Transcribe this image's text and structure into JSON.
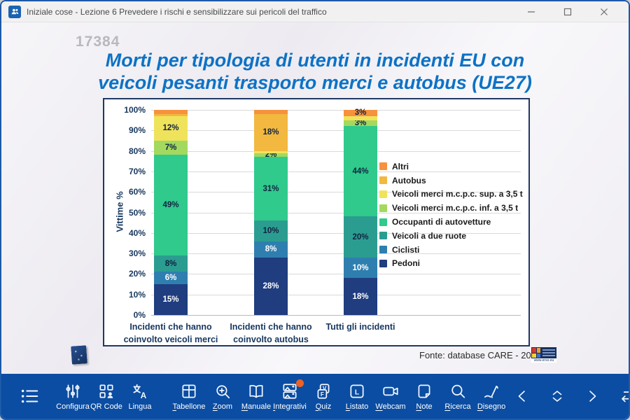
{
  "window": {
    "title": "Iniziale cose - Lezione 6 Prevedere i rischi e sensibilizzare sui pericoli del traffico",
    "controls": [
      {
        "name": "minimize-button"
      },
      {
        "name": "maximize-button"
      },
      {
        "name": "close-button"
      }
    ]
  },
  "slide": {
    "code": "17384",
    "title_line1": "Morti per tipologia di utenti in incidenti EU con",
    "title_line2": "veicoli pesanti trasporto merci e autobus (UE27)",
    "source": "Fonte: database CARE - 2023",
    "erso_caption": "www.erso.eu"
  },
  "chart_data": {
    "type": "bar",
    "stacked": true,
    "ylabel": "Vittime %",
    "ylim": [
      0,
      100
    ],
    "ytick_step": 10,
    "grid": true,
    "legend_position": "right",
    "categories": [
      [
        "Incidenti che hanno",
        "coinvolto veicoli merci"
      ],
      [
        "Incidenti che hanno",
        "coinvolto autobus"
      ],
      [
        "Tutti gli incidenti"
      ]
    ],
    "series": [
      {
        "name": "Pedoni",
        "color": "#1f3d7f",
        "label_color": "#ffffff",
        "values": [
          15,
          28,
          18
        ]
      },
      {
        "name": "Ciclisti",
        "color": "#2e7faf",
        "label_color": "#ffffff",
        "values": [
          6,
          8,
          10
        ]
      },
      {
        "name": "Veicoli a due ruote",
        "color": "#2b9d90",
        "label_color": "#10233f",
        "values": [
          8,
          10,
          20
        ]
      },
      {
        "name": "Occupanti di autovetture",
        "color": "#2fca8c",
        "label_color": "#10233f",
        "values": [
          49,
          31,
          44
        ]
      },
      {
        "name": "Veicoli merci m.c.p.c. inf. a 3,5 t",
        "color": "#a3d95e",
        "label_color": "#10233f",
        "values": [
          7,
          2,
          3
        ]
      },
      {
        "name": "Veicoli merci m.c.p.c. sup. a 3,5 t",
        "color": "#f0e35c",
        "label_color": "#10233f",
        "values": [
          12,
          1,
          2
        ]
      },
      {
        "name": "Autobus",
        "color": "#f2b83f",
        "label_color": "#10233f",
        "values": [
          1,
          18,
          0
        ]
      },
      {
        "name": "Altri",
        "color": "#f6913e",
        "label_color": "#10233f",
        "values": [
          2,
          2,
          3
        ]
      }
    ],
    "segment_labels": [
      [
        "15%",
        "6%",
        "8%",
        "49%",
        "7%",
        "12%",
        null,
        null
      ],
      [
        "28%",
        "8%",
        "10%",
        "31%",
        "2%",
        null,
        "18%",
        null
      ],
      [
        "18%",
        "10%",
        "20%",
        "44%",
        "3%",
        null,
        null,
        "3%"
      ]
    ],
    "erso_cell_colors": [
      "#d23b2f",
      "#e9a13b",
      "#efd43d",
      "#3b6fd2"
    ]
  },
  "toolbar": {
    "items": [
      {
        "icon": "menu-icon",
        "label": "",
        "underline": false,
        "badge": false
      },
      {
        "icon": "sliders-icon",
        "label": "Configura",
        "underline": false,
        "badge": false
      },
      {
        "icon": "qr-code-icon",
        "label": "QR Code",
        "underline": false,
        "badge": false
      },
      {
        "icon": "language-icon",
        "label": "Lingua",
        "underline": false,
        "badge": false
      },
      {
        "icon": "grid-icon",
        "label": "Tabellone",
        "underline": true,
        "badge": false,
        "gap": true
      },
      {
        "icon": "zoom-icon",
        "label": "Zoom",
        "underline": true,
        "badge": false
      },
      {
        "icon": "book-icon",
        "label": "Manuale",
        "underline": true,
        "badge": false
      },
      {
        "icon": "images-icon",
        "label": "Integrativi",
        "underline": true,
        "badge": true
      },
      {
        "icon": "quiz-icon",
        "label": "Quiz",
        "underline": true,
        "badge": false
      },
      {
        "icon": "listato-icon",
        "label": "Listato",
        "underline": true,
        "badge": false
      },
      {
        "icon": "webcam-icon",
        "label": "Webcam",
        "underline": true,
        "badge": false
      },
      {
        "icon": "note-icon",
        "label": "Note",
        "underline": true,
        "badge": false
      },
      {
        "icon": "search-icon",
        "label": "Ricerca",
        "underline": true,
        "badge": false
      },
      {
        "icon": "pen-icon",
        "label": "Disegno",
        "underline": true,
        "badge": false
      }
    ],
    "nav": [
      "chevron-left-icon",
      "expand-vertical-icon",
      "chevron-right-icon",
      "return-icon"
    ]
  }
}
